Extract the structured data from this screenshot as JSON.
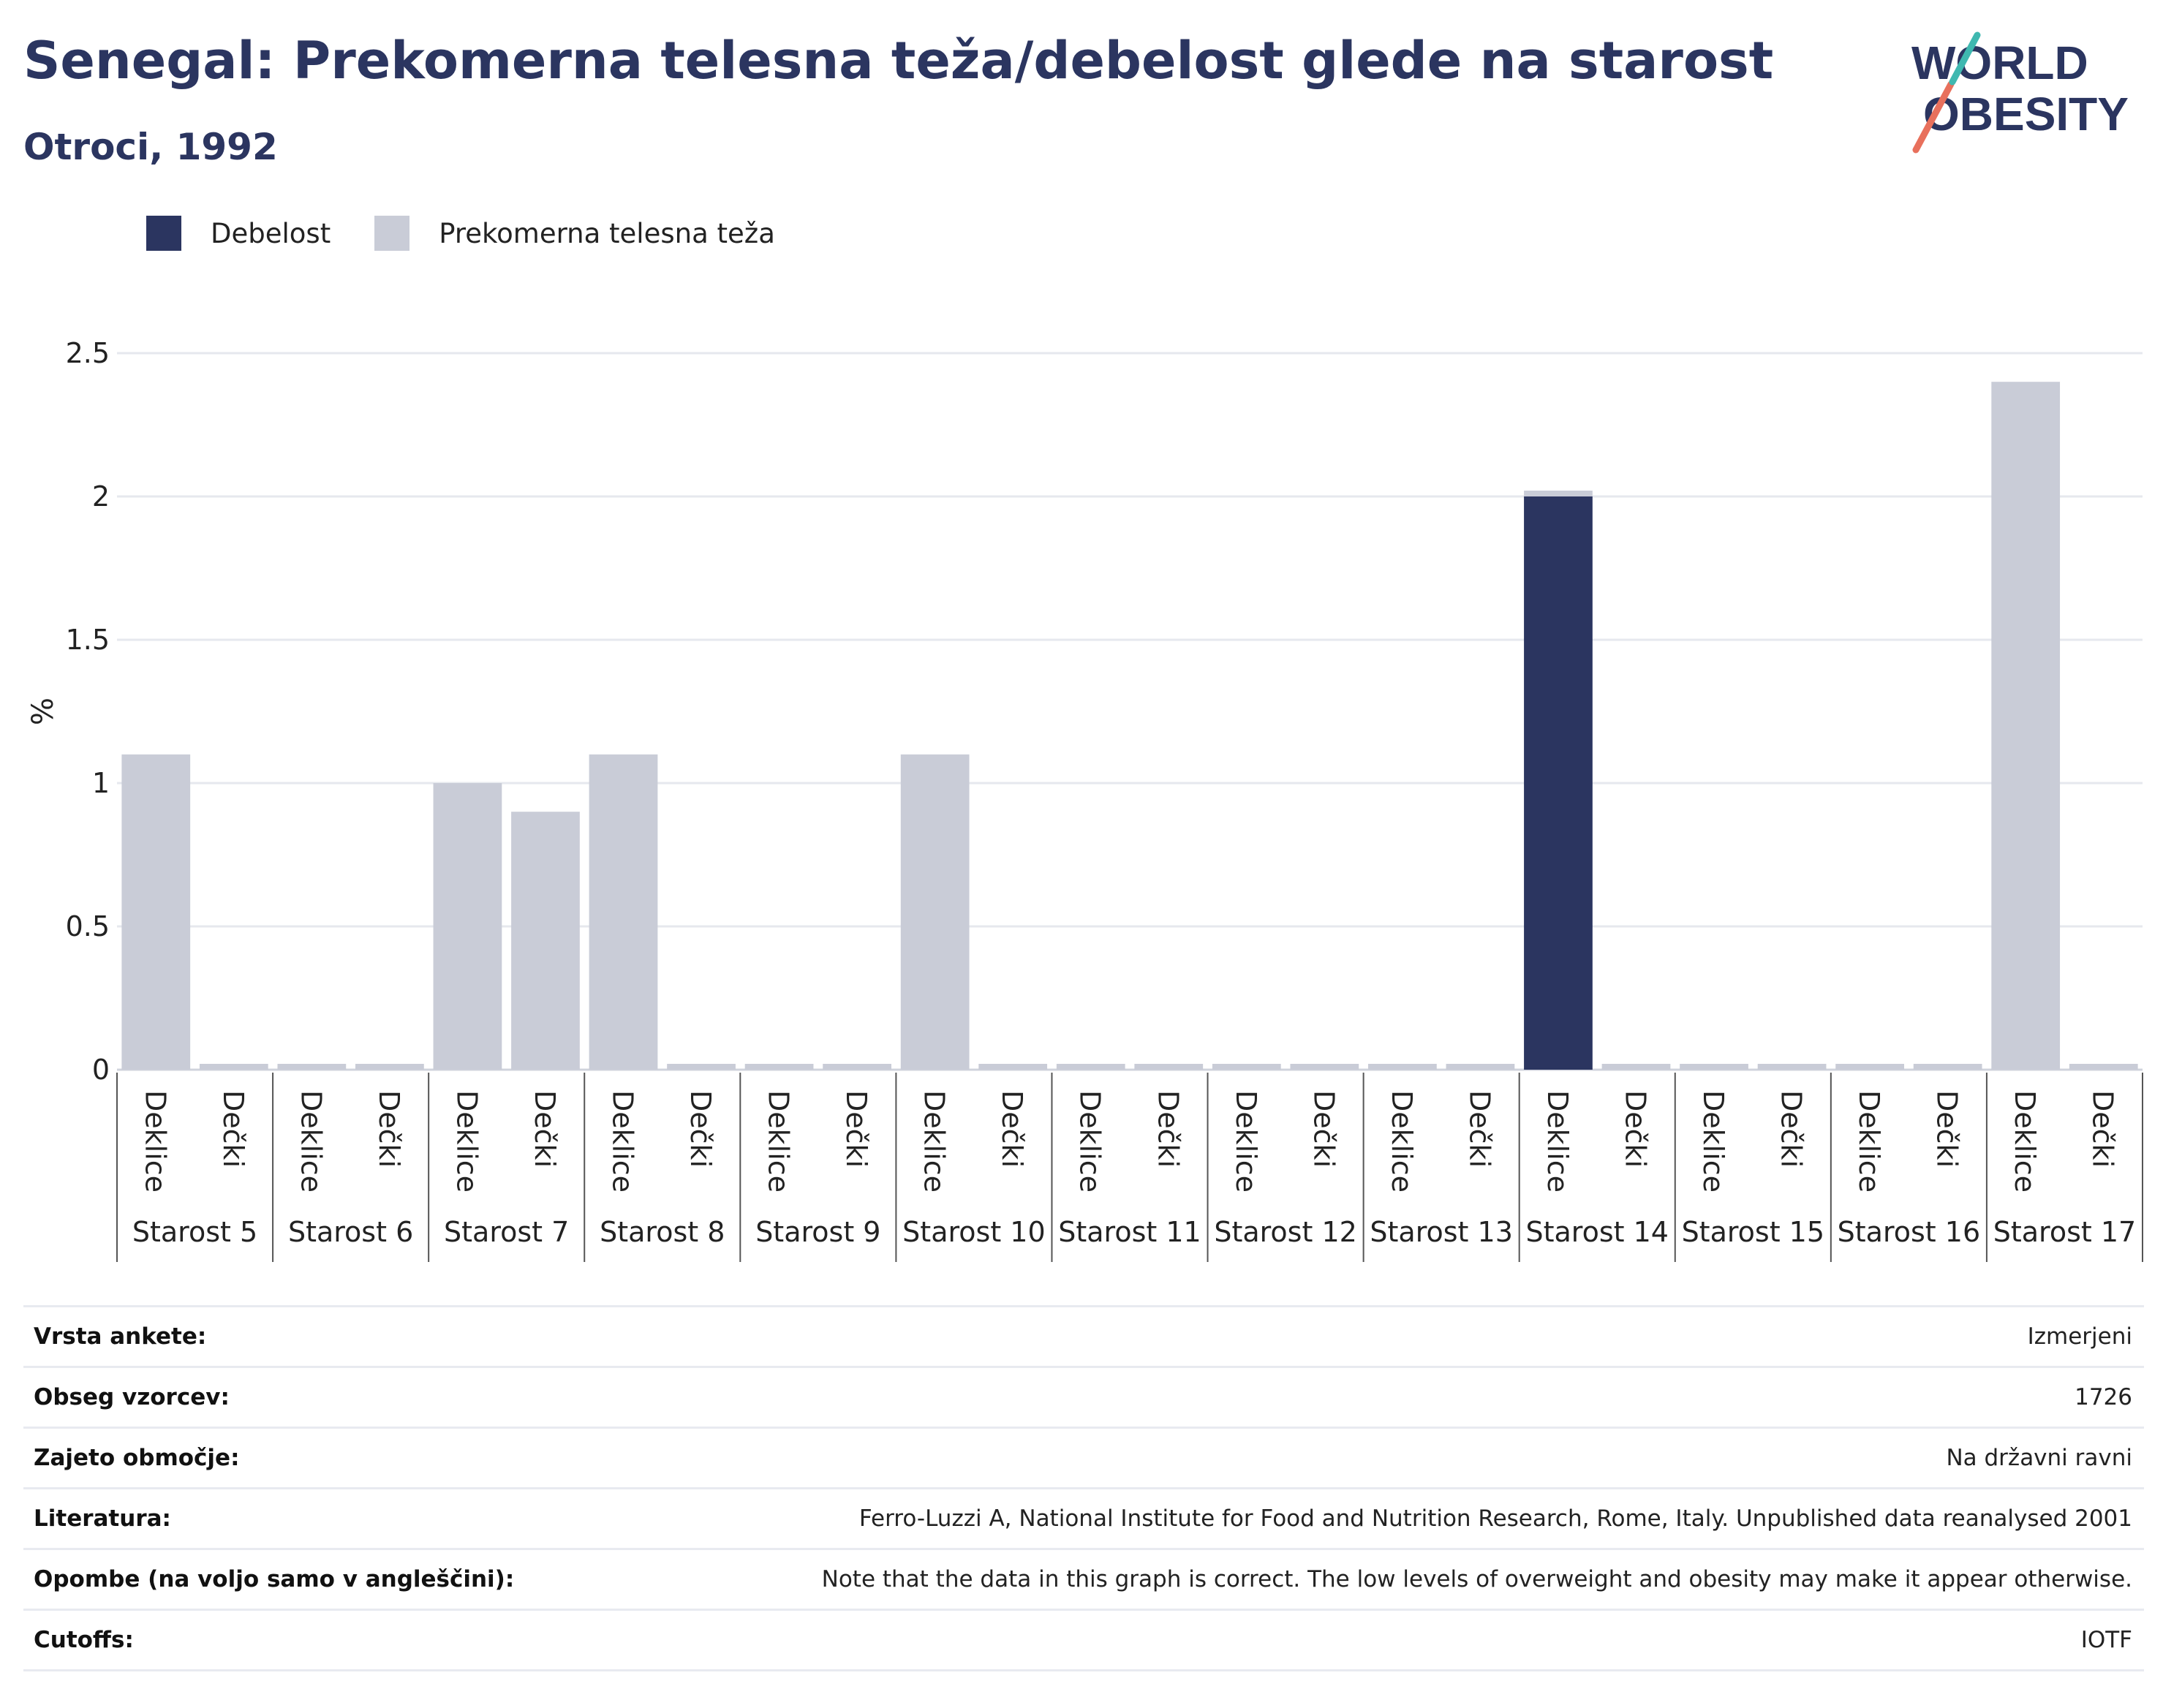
{
  "header": {
    "title": "Senegal: Prekomerna telesna teža/debelost glede na starost",
    "subtitle": "Otroci, 1992"
  },
  "logo": {
    "line1": "WORLD",
    "line2": "OBESITY"
  },
  "legend": [
    {
      "label": "Debelost",
      "color": "#2b3560"
    },
    {
      "label": "Prekomerna telesna teža",
      "color": "#c9ccd7"
    }
  ],
  "chart_data": {
    "type": "bar",
    "stacked": true,
    "ylabel": "%",
    "ylim": [
      0,
      2.5
    ],
    "yticks": [
      0,
      0.5,
      1,
      1.5,
      2,
      2.5
    ],
    "grid": true,
    "legend_position": "top-left",
    "sex_labels": [
      "Deklice",
      "Dečki"
    ],
    "groups": [
      "Starost 5",
      "Starost 6",
      "Starost 7",
      "Starost 8",
      "Starost 9",
      "Starost 10",
      "Starost 11",
      "Starost 12",
      "Starost 13",
      "Starost 14",
      "Starost 15",
      "Starost 16",
      "Starost 17"
    ],
    "series": [
      {
        "name": "Debelost",
        "color": "#2b3560",
        "values": [
          0,
          0,
          0,
          0,
          0,
          0,
          0,
          0,
          0,
          0,
          0,
          0,
          0,
          0,
          0,
          0,
          0,
          0,
          2.0,
          0,
          0,
          0,
          0,
          0,
          0,
          0
        ]
      },
      {
        "name": "Prekomerna telesna teža",
        "color": "#c9ccd7",
        "values": [
          1.1,
          0,
          0,
          0,
          1.0,
          0.9,
          1.1,
          0,
          0,
          0,
          1.1,
          0,
          0,
          0,
          0,
          0,
          0,
          0,
          0.01,
          0,
          0,
          0,
          0,
          0,
          2.4,
          0
        ]
      }
    ]
  },
  "info": [
    {
      "label": "Vrsta ankete:",
      "value": "Izmerjeni"
    },
    {
      "label": "Obseg vzorcev:",
      "value": "1726"
    },
    {
      "label": "Zajeto območje:",
      "value": "Na državni ravni"
    },
    {
      "label": "Literatura:",
      "value": "Ferro-Luzzi A, National Institute for Food and Nutrition Research, Rome, Italy. Unpublished data reanalysed 2001"
    },
    {
      "label": "Opombe (na voljo samo v angleščini):",
      "value": "Note that the data in this graph is correct. The low levels of overweight and obesity may make it appear otherwise."
    },
    {
      "label": "Cutoffs:",
      "value": "IOTF"
    }
  ]
}
